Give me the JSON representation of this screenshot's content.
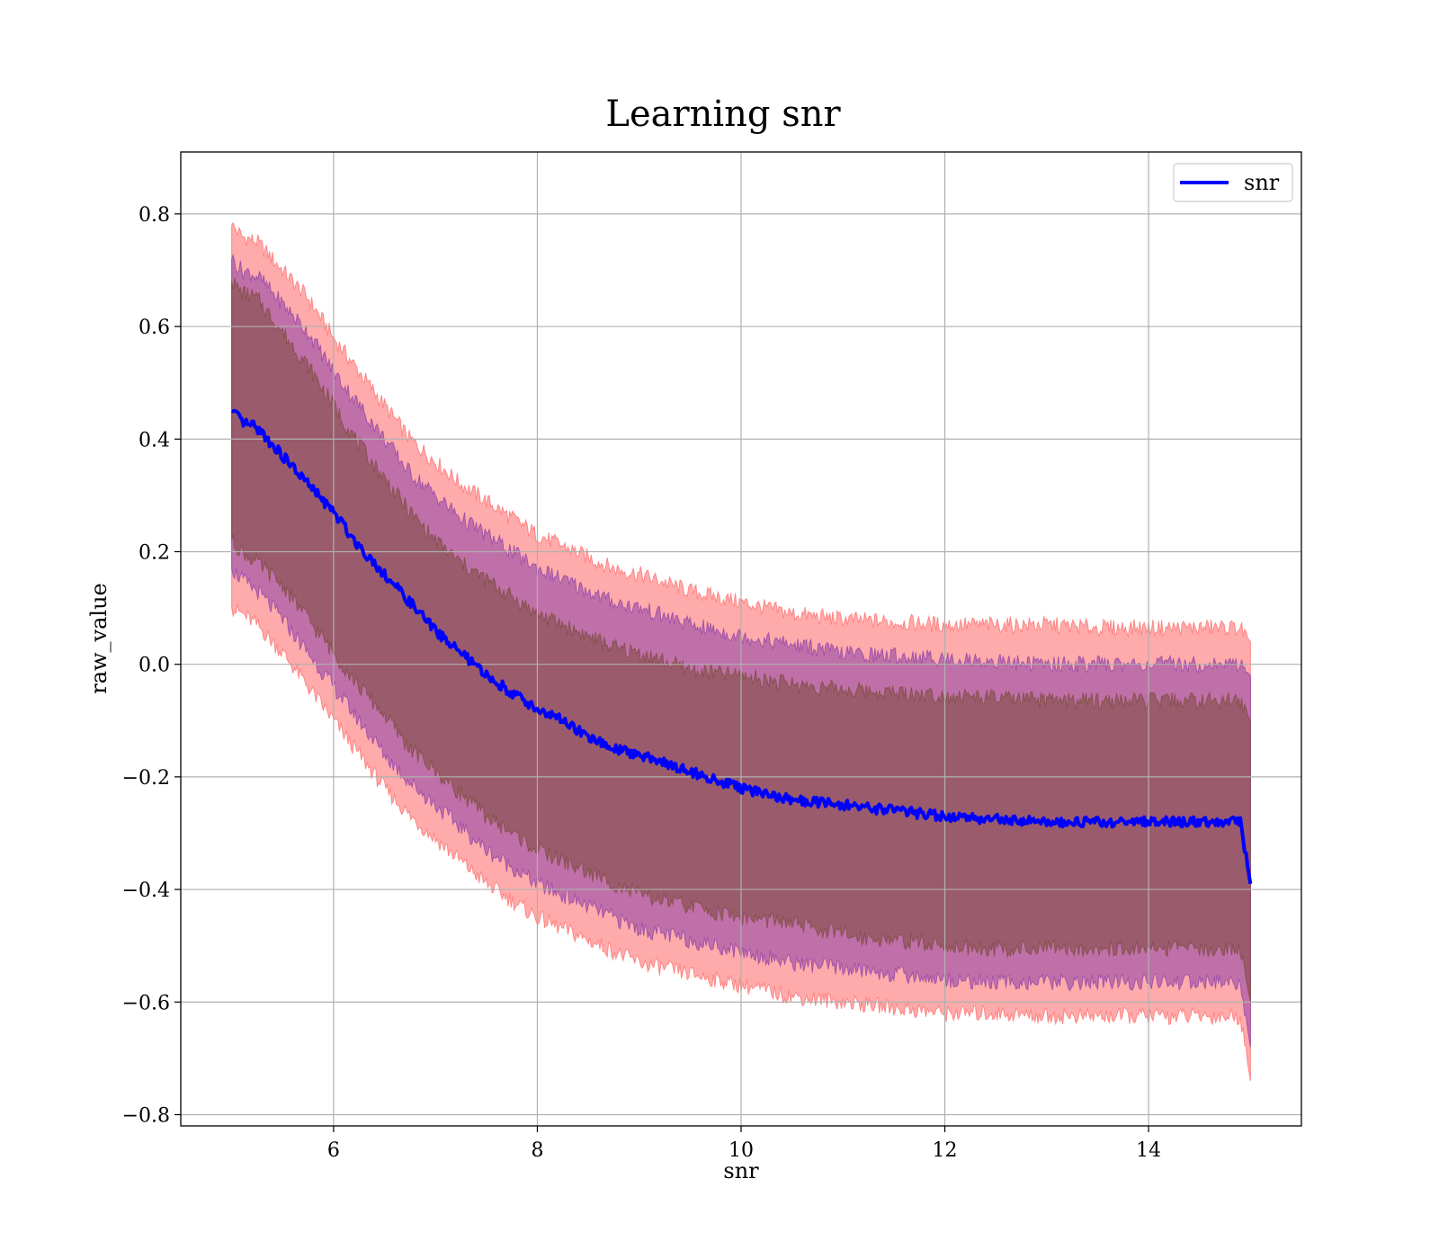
{
  "chart_data": {
    "type": "line",
    "title": "Learning snr",
    "xlabel": "snr",
    "ylabel": "raw_value",
    "xlim": [
      4.5,
      15.5
    ],
    "ylim": [
      -0.82,
      0.91
    ],
    "xticks": [
      6,
      8,
      10,
      12,
      14
    ],
    "xtick_labels": [
      "6",
      "8",
      "10",
      "12",
      "14"
    ],
    "yticks": [
      -0.8,
      -0.6,
      -0.4,
      -0.2,
      0.0,
      0.2,
      0.4,
      0.6,
      0.8
    ],
    "ytick_labels": [
      "−0.8",
      "−0.6",
      "−0.4",
      "−0.2",
      "0.0",
      "0.2",
      "0.4",
      "0.6",
      "0.8"
    ],
    "grid": true,
    "legend": {
      "position": "top-right",
      "entries": [
        "snr"
      ]
    },
    "series": [
      {
        "name": "snr",
        "color": "#0000ff",
        "x": [
          5.0,
          5.1,
          5.25,
          5.5,
          5.75,
          6.0,
          6.25,
          6.5,
          6.75,
          7.0,
          7.25,
          7.5,
          7.75,
          8.0,
          8.25,
          8.5,
          8.75,
          9.0,
          9.5,
          10.0,
          10.5,
          11.0,
          11.5,
          12.0,
          12.5,
          13.0,
          13.5,
          14.0,
          14.5,
          14.9,
          15.0
        ],
        "y": [
          0.45,
          0.43,
          0.42,
          0.37,
          0.32,
          0.27,
          0.21,
          0.16,
          0.11,
          0.06,
          0.02,
          -0.02,
          -0.05,
          -0.08,
          -0.1,
          -0.13,
          -0.15,
          -0.16,
          -0.19,
          -0.22,
          -0.24,
          -0.25,
          -0.26,
          -0.27,
          -0.275,
          -0.28,
          -0.28,
          -0.28,
          -0.28,
          -0.28,
          -0.39
        ]
      }
    ],
    "bands": [
      {
        "color": "#ff6666",
        "upper": [
          0.78,
          0.76,
          0.75,
          0.7,
          0.65,
          0.58,
          0.52,
          0.46,
          0.4,
          0.36,
          0.32,
          0.29,
          0.26,
          0.23,
          0.21,
          0.19,
          0.17,
          0.16,
          0.13,
          0.11,
          0.09,
          0.08,
          0.075,
          0.07,
          0.07,
          0.07,
          0.065,
          0.065,
          0.065,
          0.065,
          0.04
        ],
        "lower": [
          0.1,
          0.09,
          0.07,
          0.02,
          -0.04,
          -0.1,
          -0.16,
          -0.22,
          -0.27,
          -0.31,
          -0.35,
          -0.39,
          -0.42,
          -0.45,
          -0.47,
          -0.49,
          -0.51,
          -0.53,
          -0.55,
          -0.57,
          -0.59,
          -0.6,
          -0.61,
          -0.62,
          -0.62,
          -0.625,
          -0.625,
          -0.625,
          -0.625,
          -0.625,
          -0.74
        ]
      },
      {
        "color": "#8c3fa8",
        "upper": [
          0.72,
          0.7,
          0.69,
          0.64,
          0.59,
          0.52,
          0.46,
          0.4,
          0.34,
          0.3,
          0.26,
          0.23,
          0.2,
          0.17,
          0.15,
          0.13,
          0.11,
          0.1,
          0.07,
          0.05,
          0.035,
          0.02,
          0.015,
          0.01,
          0.005,
          0.0,
          0.0,
          0.0,
          0.0,
          0.0,
          -0.02
        ],
        "lower": [
          0.17,
          0.15,
          0.13,
          0.08,
          0.02,
          -0.04,
          -0.1,
          -0.16,
          -0.21,
          -0.25,
          -0.29,
          -0.33,
          -0.36,
          -0.39,
          -0.41,
          -0.43,
          -0.45,
          -0.47,
          -0.49,
          -0.51,
          -0.53,
          -0.54,
          -0.55,
          -0.56,
          -0.565,
          -0.565,
          -0.565,
          -0.565,
          -0.565,
          -0.565,
          -0.68
        ]
      },
      {
        "color": "#7a4a3a",
        "upper": [
          0.68,
          0.66,
          0.65,
          0.59,
          0.53,
          0.46,
          0.39,
          0.33,
          0.27,
          0.22,
          0.18,
          0.15,
          0.12,
          0.09,
          0.07,
          0.05,
          0.03,
          0.02,
          -0.01,
          -0.02,
          -0.035,
          -0.045,
          -0.05,
          -0.055,
          -0.06,
          -0.065,
          -0.065,
          -0.065,
          -0.065,
          -0.065,
          -0.1
        ],
        "lower": [
          0.22,
          0.2,
          0.18,
          0.14,
          0.08,
          0.02,
          -0.04,
          -0.09,
          -0.15,
          -0.19,
          -0.23,
          -0.27,
          -0.3,
          -0.33,
          -0.35,
          -0.37,
          -0.39,
          -0.41,
          -0.43,
          -0.45,
          -0.46,
          -0.48,
          -0.49,
          -0.5,
          -0.505,
          -0.505,
          -0.505,
          -0.505,
          -0.505,
          -0.505,
          -0.6
        ]
      }
    ]
  }
}
